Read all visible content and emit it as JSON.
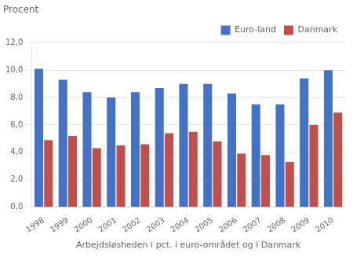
{
  "chart_data": {
    "type": "bar",
    "ylabel": "Procent",
    "xlabel": "Arbejdsløsheden i pct. i euro-området og i Danmark",
    "categories": [
      "1998",
      "1999",
      "2000",
      "2001",
      "2002",
      "2003",
      "2004",
      "2005",
      "2006",
      "2007",
      "2008",
      "2009",
      "2010"
    ],
    "series": [
      {
        "name": "Euro-land",
        "color": "#4472C4",
        "values": [
          10.1,
          9.3,
          8.4,
          8.0,
          8.4,
          8.7,
          9.0,
          9.0,
          8.3,
          7.5,
          7.5,
          9.4,
          10.0
        ]
      },
      {
        "name": "Danmark",
        "color": "#C0504D",
        "values": [
          4.9,
          5.2,
          4.3,
          4.5,
          4.6,
          5.4,
          5.5,
          4.8,
          3.9,
          3.8,
          3.3,
          6.0,
          6.9
        ]
      }
    ],
    "ylim": [
      0,
      12.0
    ],
    "yticks": [
      {
        "value": 0.0,
        "label": "0,0"
      },
      {
        "value": 2.0,
        "label": "2,0"
      },
      {
        "value": 4.0,
        "label": "4,0"
      },
      {
        "value": 6.0,
        "label": "6,0"
      },
      {
        "value": 8.0,
        "label": "8,0"
      },
      {
        "value": 10.0,
        "label": "10,0"
      },
      {
        "value": 12.0,
        "label": "12,0"
      }
    ],
    "grid": true,
    "legend": "upper right"
  }
}
